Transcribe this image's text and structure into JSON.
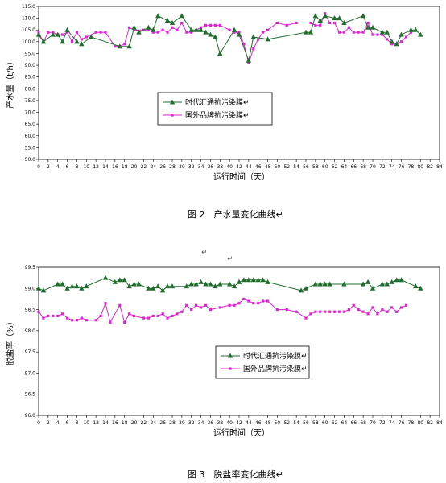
{
  "chart_data": [
    {
      "type": "line",
      "ylabel": "产水量（t/h）",
      "xlabel": "运行时间（天）",
      "caption": "图 2　产水量变化曲线↵",
      "ylim": [
        50,
        115
      ],
      "yticks": [
        "50.0",
        "55.0",
        "60.0",
        "65.0",
        "70.0",
        "75.0",
        "80.0",
        "85.0",
        "90.0",
        "95.0",
        "100.0",
        "105.0",
        "110.0",
        "115.0"
      ],
      "xticks": [
        "0",
        "2",
        "4",
        "6",
        "8",
        "10",
        "12",
        "14",
        "16",
        "18",
        "20",
        "22",
        "24",
        "26",
        "28",
        "30",
        "32",
        "34",
        "36",
        "38",
        "40",
        "42",
        "44",
        "46",
        "48",
        "50",
        "52",
        "54",
        "56",
        "58",
        "60",
        "62",
        "64",
        "66",
        "68",
        "70",
        "72",
        "74",
        "76",
        "78",
        "80",
        "82",
        "84"
      ],
      "xlim": [
        0,
        84
      ],
      "grid": false,
      "legend_position": "middle-center",
      "series": [
        {
          "name": "时代汇通抗污染膜↵",
          "color": "#1f6e2e",
          "marker": "triangle",
          "x": [
            0,
            1,
            3,
            4,
            5,
            6,
            8,
            9,
            11,
            17,
            19,
            20,
            21,
            23,
            24,
            25,
            27,
            28,
            30,
            32,
            33,
            34,
            35,
            36,
            37,
            38,
            41,
            42,
            44,
            45,
            48,
            56,
            57,
            58,
            59,
            60,
            62,
            63,
            64,
            68,
            69,
            70,
            72,
            73,
            74,
            75,
            76,
            78,
            79,
            80
          ],
          "y": [
            103,
            100,
            103,
            103,
            100,
            105,
            100,
            99,
            102,
            98,
            98,
            106,
            104,
            106,
            105,
            111,
            109,
            108,
            111,
            105,
            105,
            105,
            104,
            103,
            102,
            95,
            105,
            103,
            92,
            102,
            101,
            104,
            104,
            111,
            109,
            111,
            110,
            110,
            108,
            111,
            106,
            106,
            104,
            104,
            100,
            99,
            103,
            105,
            105,
            103
          ]
        },
        {
          "name": "国外品牌抗污染膜↵",
          "color": "#e024d6",
          "marker": "square",
          "x": [
            0,
            1,
            2,
            3,
            4,
            5,
            6,
            7,
            8,
            9,
            10,
            12,
            13,
            14,
            16,
            17,
            18,
            19,
            20,
            22,
            23,
            24,
            25,
            26,
            27,
            28,
            29,
            30,
            31,
            32,
            34,
            35,
            36,
            37,
            38,
            40,
            41,
            42,
            43,
            44,
            45,
            46,
            47,
            48,
            50,
            52,
            54,
            57,
            58,
            59,
            60,
            61,
            62,
            63,
            64,
            65,
            66,
            67,
            68,
            69,
            70,
            71,
            72,
            73,
            74,
            75,
            76,
            77,
            78
          ],
          "y": [
            104,
            100,
            104,
            104,
            103,
            103,
            104,
            100,
            104,
            101,
            102,
            104,
            104,
            104,
            98,
            98,
            99,
            106,
            105,
            105,
            105,
            104,
            104,
            105,
            104,
            106,
            105,
            108,
            104,
            104,
            106,
            107,
            107,
            107,
            107,
            105,
            104,
            104,
            99,
            91,
            97,
            101,
            104,
            105,
            108,
            107,
            108,
            108,
            107,
            107,
            112,
            108,
            108,
            104,
            104,
            106,
            104,
            104,
            104,
            108,
            103,
            103,
            103,
            101,
            99,
            99,
            100,
            102,
            104
          ]
        }
      ]
    },
    {
      "type": "line",
      "ylabel": "脱盐率（%）",
      "xlabel": "运行时间（天）",
      "caption": "图 3　脱盐率变化曲线↵",
      "ylim": [
        96.0,
        99.5
      ],
      "yticks": [
        "96.0",
        "96.5",
        "97.0",
        "97.5",
        "98.0",
        "98.5",
        "99.0",
        "99.5"
      ],
      "xticks": [
        "0",
        "2",
        "4",
        "6",
        "8",
        "10",
        "12",
        "14",
        "16",
        "18",
        "20",
        "22",
        "24",
        "26",
        "28",
        "30",
        "32",
        "34",
        "36",
        "38",
        "40",
        "42",
        "44",
        "46",
        "48",
        "50",
        "52",
        "54",
        "56",
        "58",
        "60",
        "62",
        "64",
        "66",
        "68",
        "70",
        "72",
        "74",
        "76",
        "78",
        "80",
        "82",
        "84"
      ],
      "xlim": [
        0,
        84
      ],
      "grid": false,
      "legend_position": "middle-center",
      "series": [
        {
          "name": "时代汇通抗污染膜↵",
          "color": "#1f6e2e",
          "marker": "triangle",
          "x": [
            0,
            1,
            4,
            5,
            6,
            7,
            8,
            9,
            10,
            14,
            16,
            17,
            18,
            19,
            20,
            21,
            23,
            24,
            25,
            26,
            27,
            28,
            31,
            32,
            33,
            34,
            35,
            36,
            37,
            38,
            40,
            41,
            42,
            43,
            44,
            45,
            46,
            47,
            48,
            55,
            56,
            58,
            59,
            60,
            61,
            64,
            68,
            69,
            70,
            72,
            73,
            74,
            75,
            76,
            79,
            80
          ],
          "y": [
            99.0,
            98.95,
            99.1,
            99.1,
            99.0,
            99.05,
            99.05,
            99.0,
            99.05,
            99.25,
            99.15,
            99.2,
            99.2,
            99.05,
            99.1,
            99.1,
            99.0,
            99.0,
            99.05,
            98.95,
            99.05,
            99.05,
            99.05,
            99.1,
            99.1,
            99.15,
            99.1,
            99.1,
            99.05,
            99.1,
            99.1,
            99.05,
            99.15,
            99.2,
            99.2,
            99.2,
            99.2,
            99.2,
            99.15,
            98.95,
            99.0,
            99.1,
            99.1,
            99.1,
            99.1,
            99.1,
            99.1,
            99.15,
            99.0,
            99.1,
            99.1,
            99.15,
            99.2,
            99.2,
            99.05,
            99.0
          ]
        },
        {
          "name": "国外品牌抗污染膜↵",
          "color": "#e024d6",
          "marker": "square",
          "x": [
            0,
            1,
            2,
            3,
            4,
            5,
            6,
            7,
            8,
            9,
            10,
            12,
            13,
            14,
            15,
            17,
            18,
            19,
            20,
            22,
            23,
            24,
            25,
            26,
            27,
            28,
            29,
            30,
            31,
            32,
            33,
            34,
            35,
            36,
            38,
            40,
            41,
            42,
            43,
            44,
            45,
            46,
            47,
            48,
            50,
            52,
            54,
            56,
            57,
            58,
            59,
            60,
            61,
            62,
            63,
            64,
            65,
            66,
            67,
            68,
            69,
            70,
            71,
            72,
            73,
            74,
            75,
            76,
            77
          ],
          "y": [
            98.45,
            98.3,
            98.35,
            98.35,
            98.35,
            98.4,
            98.3,
            98.25,
            98.25,
            98.3,
            98.25,
            98.25,
            98.35,
            98.65,
            98.2,
            98.6,
            98.2,
            98.4,
            98.35,
            98.3,
            98.3,
            98.35,
            98.35,
            98.4,
            98.3,
            98.35,
            98.4,
            98.45,
            98.6,
            98.5,
            98.6,
            98.55,
            98.6,
            98.5,
            98.55,
            98.6,
            98.6,
            98.65,
            98.75,
            98.7,
            98.65,
            98.65,
            98.7,
            98.7,
            98.5,
            98.5,
            98.45,
            98.3,
            98.4,
            98.45,
            98.45,
            98.45,
            98.45,
            98.45,
            98.45,
            98.45,
            98.5,
            98.6,
            98.5,
            98.45,
            98.4,
            98.55,
            98.4,
            98.5,
            98.45,
            98.55,
            98.45,
            98.55,
            98.6
          ]
        }
      ]
    }
  ],
  "stray_marks": [
    "↵",
    "↵"
  ]
}
